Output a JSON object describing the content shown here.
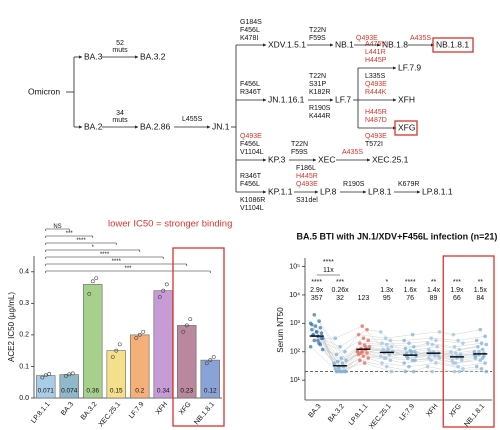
{
  "tree": {
    "nodes": [
      "Omicron",
      "BA.3",
      "BA.3.2",
      "BA.2",
      "BA.2.86",
      "JN.1",
      "XDV.1.5.1",
      "NB.1",
      "NB.1.8",
      "NB.1.8.1",
      "JN.1.16.1",
      "LF.7",
      "LF.7.9",
      "XFH",
      "XFG",
      "KP.3",
      "XEC",
      "XEC.25.1",
      "KP.1.1",
      "LP.8",
      "LP.8.1",
      "LP.8.1.1"
    ],
    "mutation_counts": [
      {
        "count": 52,
        "label": "muts"
      },
      {
        "count": 34,
        "label": "muts"
      }
    ],
    "mutations": [
      "L455S",
      "G184S",
      "F456L",
      "K478I",
      "T22N",
      "F59S",
      "Q493E",
      "A435S",
      "F456L",
      "R346T",
      "T22N",
      "S31P",
      "K182R",
      "R190S",
      "K444R",
      "A475V",
      "L441R",
      "H445P",
      "L335S",
      "Q493E",
      "R444K",
      "H445R",
      "N487D",
      "Q493E",
      "T572I",
      "Q493E",
      "F456L",
      "V1104L",
      "T22N",
      "F59S",
      "A435S",
      "R346T",
      "F456L",
      "K1086R",
      "V1104L",
      "F186L",
      "H445R",
      "Q493E",
      "S31del",
      "R190S",
      "K679R"
    ]
  },
  "chart_data": [
    {
      "type": "bar",
      "title": "lower IC50 = stronger binding",
      "ylabel": "ACE2 IC50 (µg/mL)",
      "categories": [
        "LP.8.1.1",
        "BA.3",
        "BA.3.2",
        "XEC.25.1",
        "LF.7.9",
        "XFH",
        "XFG",
        "NB.1.8.1"
      ],
      "values": [
        0.071,
        0.074,
        0.36,
        0.15,
        0.2,
        0.34,
        0.23,
        0.12
      ],
      "points": [
        [
          0.065,
          0.072,
          0.076
        ],
        [
          0.07,
          0.075,
          0.078
        ],
        [
          0.33,
          0.37,
          0.38
        ],
        [
          0.13,
          0.15,
          0.17
        ],
        [
          0.19,
          0.2,
          0.21
        ],
        [
          0.32,
          0.34,
          0.36
        ],
        [
          0.21,
          0.23,
          0.25
        ],
        [
          0.11,
          0.12,
          0.13
        ]
      ],
      "colors": [
        "#a9cde6",
        "#8fb8c8",
        "#a7d08c",
        "#f4e08a",
        "#f5b07a",
        "#c79bd6",
        "#b9879e",
        "#8aa3d6"
      ],
      "significance": [
        "NS",
        "***",
        "****",
        "*",
        "****",
        "****",
        "***"
      ],
      "ylim": [
        0,
        0.45
      ],
      "yticks": [
        {
          "value": 0,
          "label": "0.0"
        },
        0.1,
        0.2,
        0.3,
        0.4
      ]
    },
    {
      "type": "strip",
      "title": "BA.5 BTI with JN.1/XDV+F456L infection (n=21)",
      "ylabel": "Serum NT50",
      "categories": [
        "BA.3",
        "BA.3.2",
        "LP.8.1.1",
        "XEC.25.1",
        "LF.7.9",
        "XFH",
        "XFG",
        "NB.1.8.1"
      ],
      "values": [
        357,
        32,
        123,
        95,
        76,
        89,
        66,
        84
      ],
      "fold_changes": [
        "2.9x",
        "0.26x",
        null,
        "1.3x",
        "1.6x",
        "1.4x",
        "1.9x",
        "1.5x"
      ],
      "significance": [
        "****",
        "***",
        null,
        "*",
        "****",
        "**",
        "***",
        "**"
      ],
      "comparison": {
        "label": "****",
        "fold": "11x"
      },
      "colors": [
        "#3a78b0",
        "#7fb0d8",
        "#e8675a",
        "#9cc3e4",
        "#7fb0d8",
        "#9cc3e4",
        "#9cc3e4",
        "#7fb0d8"
      ],
      "points": [
        [
          150,
          200,
          250,
          300,
          350,
          400,
          450,
          500,
          600,
          700,
          800,
          1000,
          1200,
          2000,
          120,
          250,
          380,
          300,
          500,
          900,
          180
        ],
        [
          20,
          20,
          20,
          20,
          20,
          20,
          25,
          30,
          30,
          35,
          40,
          45,
          50,
          60,
          80,
          100,
          150,
          300,
          20,
          25,
          40
        ],
        [
          40,
          50,
          60,
          70,
          80,
          90,
          100,
          110,
          120,
          130,
          150,
          170,
          200,
          250,
          300,
          400,
          600,
          800,
          100,
          140,
          90
        ],
        [
          20,
          30,
          40,
          50,
          60,
          70,
          80,
          90,
          100,
          110,
          120,
          150,
          180,
          200,
          250,
          300,
          500,
          80,
          60,
          100,
          130
        ],
        [
          20,
          20,
          30,
          40,
          50,
          60,
          70,
          80,
          90,
          100,
          110,
          130,
          150,
          200,
          250,
          400,
          60,
          80,
          100,
          70,
          50
        ],
        [
          20,
          30,
          40,
          50,
          60,
          70,
          80,
          90,
          100,
          120,
          150,
          180,
          200,
          250,
          300,
          500,
          80,
          100,
          70,
          90,
          60
        ],
        [
          20,
          20,
          25,
          30,
          40,
          50,
          60,
          70,
          80,
          90,
          100,
          120,
          150,
          200,
          250,
          400,
          60,
          70,
          50,
          80,
          40
        ],
        [
          20,
          25,
          30,
          40,
          50,
          60,
          70,
          80,
          100,
          120,
          150,
          180,
          200,
          250,
          350,
          600,
          70,
          90,
          100,
          80,
          60
        ]
      ],
      "log_y": true,
      "reference_line": 20,
      "ylim": [
        2,
        200000
      ],
      "yticks": [
        {
          "value": 10,
          "label": "10¹"
        },
        {
          "value": 100,
          "label": "10²"
        },
        {
          "value": 1000,
          "label": "10³"
        },
        {
          "value": 10000,
          "label": "10⁴"
        },
        {
          "value": 100000,
          "label": "10⁵"
        }
      ]
    }
  ]
}
